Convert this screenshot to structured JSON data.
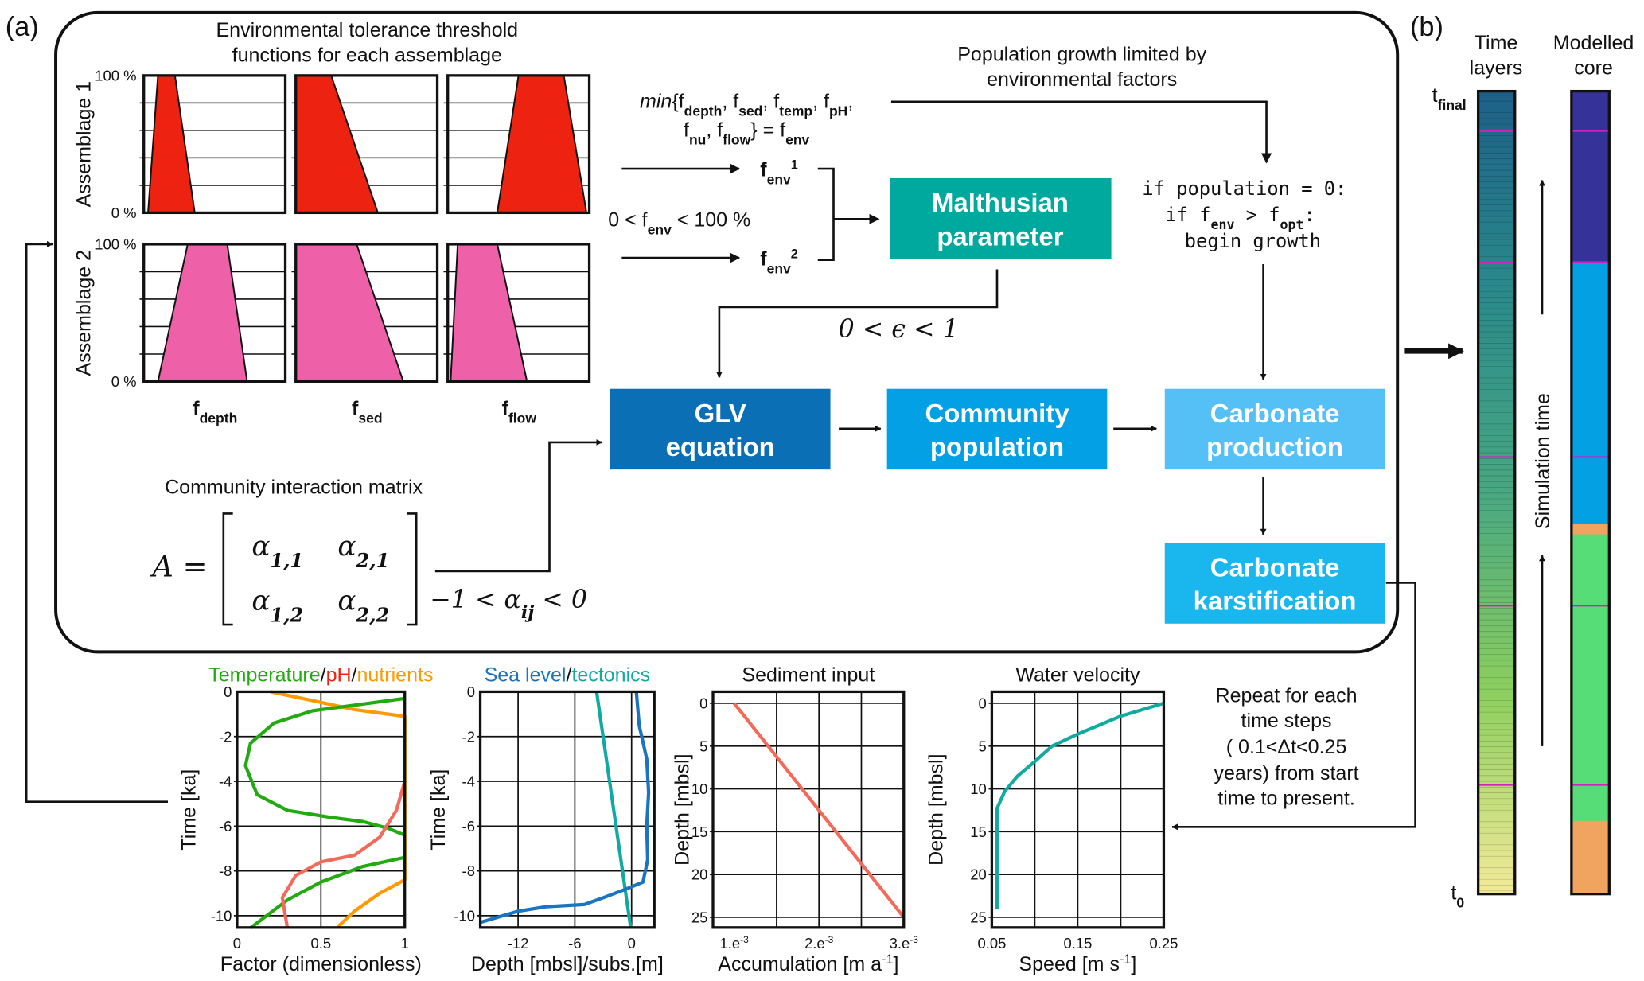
{
  "panel_a_label": "(a)",
  "panel_b_label": "(b)",
  "tolerance": {
    "title_lines": [
      "Environmental tolerance threshold",
      "functions for each assemblage"
    ],
    "y_top": "100 %",
    "y_bottom": "0 %",
    "rows": [
      {
        "label": "Assemblage 1",
        "color": "#ee2211",
        "shapes": [
          [
            0.03,
            0.1,
            0.22,
            0.36
          ],
          [
            0.0,
            0.0,
            0.25,
            0.58
          ],
          [
            0.35,
            0.5,
            0.82,
            0.98
          ]
        ]
      },
      {
        "label": "Assemblage 2",
        "color": "#ee60a8",
        "shapes": [
          [
            0.1,
            0.31,
            0.59,
            0.73
          ],
          [
            0.0,
            0.0,
            0.43,
            0.76
          ],
          [
            0.02,
            0.07,
            0.35,
            0.56
          ]
        ]
      }
    ],
    "columns": [
      [
        [
          "f",
          "b"
        ],
        [
          "depth",
          "sub"
        ]
      ],
      [
        [
          "f",
          "b"
        ],
        [
          "sed",
          "sub"
        ]
      ],
      [
        [
          "f",
          "b"
        ],
        [
          "flow",
          "sub"
        ]
      ]
    ]
  },
  "formula": {
    "line1": [
      [
        "min",
        "i"
      ],
      [
        "{f",
        ""
      ],
      [
        "depth",
        "sub"
      ],
      [
        ", f",
        ""
      ],
      [
        "sed",
        "sub"
      ],
      [
        ", f",
        ""
      ],
      [
        "temp",
        "sub"
      ],
      [
        ", f",
        ""
      ],
      [
        "pH",
        "sub"
      ],
      [
        ",",
        ""
      ]
    ],
    "line2": [
      [
        "f",
        ""
      ],
      [
        "nu",
        "sub"
      ],
      [
        ", f",
        ""
      ],
      [
        "flow",
        "sub"
      ],
      [
        "} = f",
        ""
      ],
      [
        "env",
        "sub"
      ]
    ],
    "fenv1": [
      [
        "f",
        "b"
      ],
      [
        "env",
        "subb"
      ],
      [
        "1",
        "supb"
      ]
    ],
    "fenv2": [
      [
        "f",
        "b"
      ],
      [
        "env",
        "subb"
      ],
      [
        "2",
        "supb"
      ]
    ],
    "range": [
      [
        "0 < f",
        ""
      ],
      [
        "env",
        "sub"
      ],
      [
        " < 100 %",
        ""
      ]
    ]
  },
  "population_note": [
    "Population growth limited by",
    "environmental factors"
  ],
  "code": {
    "line1": [
      [
        "if population = 0:",
        ""
      ]
    ],
    "line2": [
      [
        "if f",
        ""
      ],
      [
        "env",
        "sub"
      ],
      [
        " > f",
        ""
      ],
      [
        "opt",
        "sub"
      ],
      [
        ":",
        ""
      ]
    ],
    "line3": [
      [
        "begin growth",
        ""
      ]
    ]
  },
  "epsilon": "0 < ϵ < 1",
  "boxes": {
    "malthusian": {
      "lines": [
        "Malthusian",
        "parameter"
      ],
      "color": "#00a99d"
    },
    "glv": {
      "lines": [
        "GLV",
        "equation"
      ],
      "color": "#0a6fb5"
    },
    "community": {
      "lines": [
        "Community",
        "population"
      ],
      "color": "#03a0e6"
    },
    "production": {
      "lines": [
        "Carbonate",
        "production"
      ],
      "color": "#55c0f5"
    },
    "karstification": {
      "lines": [
        "Carbonate",
        "karstification"
      ],
      "color": "#1ab7ef"
    }
  },
  "matrix": {
    "title": "Community interaction matrix",
    "lhs": "A =",
    "a11": [
      [
        "α",
        ""
      ],
      [
        "1,1",
        "sub"
      ]
    ],
    "a21": [
      [
        "α",
        ""
      ],
      [
        "2,1",
        "sub"
      ]
    ],
    "a12": [
      [
        "α",
        ""
      ],
      [
        "1,2",
        "sub"
      ]
    ],
    "a22": [
      [
        "α",
        ""
      ],
      [
        "2,2",
        "sub"
      ]
    ],
    "constraint": [
      [
        "−1 < α",
        ""
      ],
      [
        "ij",
        "sub"
      ],
      [
        " < 0",
        ""
      ]
    ]
  },
  "repeat_note": [
    "Repeat for each",
    "time steps",
    "( 0.1<Δt<0.25",
    "years) from start",
    "time to present."
  ],
  "panel_b": {
    "time_layers_title": [
      "Time",
      "layers"
    ],
    "core_title": [
      "Modelled",
      "core"
    ],
    "t_final": [
      [
        "t",
        ""
      ],
      [
        "final",
        "sub"
      ]
    ],
    "t_zero": [
      [
        "t",
        ""
      ],
      [
        "0",
        "sub"
      ]
    ],
    "simulation_time": "Simulation time",
    "layer_gradient": [
      "#1d6088",
      "#2a8a8a",
      "#48a882",
      "#8ccf5e",
      "#f3ea98"
    ],
    "marker_color": "#d020c0",
    "core_units": [
      {
        "color": "#35339a",
        "fraction": 0.213
      },
      {
        "color": "#03a0e3",
        "fraction": 0.326
      },
      {
        "color": "#f0a460",
        "fraction": 0.013
      },
      {
        "color": "#57dd78",
        "fraction": 0.357
      },
      {
        "color": "#f0a460",
        "fraction": 0.091
      }
    ]
  },
  "chart_data": [
    {
      "type": "line",
      "title_parts": [
        {
          "text": "Temperature",
          "color": "#22aa11"
        },
        {
          "text": "/",
          "color": "#111111"
        },
        {
          "text": "pH",
          "color": "#ee2211"
        },
        {
          "text": "/",
          "color": "#111111"
        },
        {
          "text": "nutrients",
          "color": "#ff9900"
        }
      ],
      "xlabel": "Factor (dimensionless)",
      "ylabel": "Time [ka]",
      "xlim": [
        0,
        1
      ],
      "ylim": [
        0,
        -10.53
      ],
      "xticks": [
        {
          "v": 0,
          "label": [
            [
              "0",
              ""
            ]
          ]
        },
        {
          "v": 0.5,
          "label": [
            [
              "0.5",
              ""
            ]
          ]
        },
        {
          "v": 1,
          "label": [
            [
              "1",
              ""
            ]
          ]
        }
      ],
      "yticks": [
        {
          "v": 0,
          "label": "0"
        },
        {
          "v": -2,
          "label": "-2"
        },
        {
          "v": -4,
          "label": "-4"
        },
        {
          "v": -6,
          "label": "-6"
        },
        {
          "v": -8,
          "label": "-8"
        },
        {
          "v": -10,
          "label": "-10"
        }
      ],
      "gridx": [
        0.5
      ],
      "gridy": [
        -2,
        -4,
        -6,
        -8,
        -10
      ],
      "series": [
        {
          "color": "#ff9900",
          "points": [
            [
              0.2,
              0
            ],
            [
              0.45,
              -0.4
            ],
            [
              0.7,
              -0.8
            ],
            [
              1,
              -1.1
            ],
            [
              1,
              -8.4
            ],
            [
              0.85,
              -9
            ],
            [
              0.7,
              -9.8
            ],
            [
              0.6,
              -10.5
            ]
          ]
        },
        {
          "color": "#22aa11",
          "points": [
            [
              1,
              -0.3
            ],
            [
              0.7,
              -0.6
            ],
            [
              0.45,
              -0.85
            ],
            [
              0.22,
              -1.4
            ],
            [
              0.08,
              -2.3
            ],
            [
              0.05,
              -3.3
            ],
            [
              0.12,
              -4.6
            ],
            [
              0.3,
              -5.3
            ],
            [
              0.55,
              -5.6
            ],
            [
              0.75,
              -5.8
            ],
            [
              0.9,
              -6.1
            ],
            [
              1,
              -6.4
            ]
          ]
        },
        {
          "color": "#22aa11",
          "points": [
            [
              1,
              -7.4
            ],
            [
              0.75,
              -7.8
            ],
            [
              0.5,
              -8.5
            ],
            [
              0.3,
              -9.3
            ],
            [
              0.08,
              -10.55
            ]
          ]
        },
        {
          "color": "#f46a5a",
          "points": [
            [
              1,
              -4
            ],
            [
              0.95,
              -5.3
            ],
            [
              0.85,
              -6.5
            ],
            [
              0.7,
              -7.3
            ],
            [
              0.5,
              -7.6
            ],
            [
              0.35,
              -8.2
            ],
            [
              0.27,
              -9.2
            ],
            [
              0.3,
              -10.55
            ]
          ]
        }
      ]
    },
    {
      "type": "line",
      "title_parts": [
        {
          "text": "Sea level",
          "color": "#1a74c0"
        },
        {
          "text": "/",
          "color": "#111111"
        },
        {
          "text": "tectonics",
          "color": "#10aaa0"
        }
      ],
      "xlabel": "Depth [mbsl]/subs.[m]",
      "ylabel": "Time [ka]",
      "xlim": [
        -16,
        2.4
      ],
      "ylim": [
        0,
        -10.53
      ],
      "xticks": [
        {
          "v": -12,
          "label": [
            [
              "-12",
              ""
            ]
          ]
        },
        {
          "v": -6,
          "label": [
            [
              "-6",
              ""
            ]
          ]
        },
        {
          "v": 0,
          "label": [
            [
              "0",
              ""
            ]
          ]
        }
      ],
      "yticks": [
        {
          "v": 0,
          "label": "0"
        },
        {
          "v": -2,
          "label": "-2"
        },
        {
          "v": -4,
          "label": "-4"
        },
        {
          "v": -6,
          "label": "-6"
        },
        {
          "v": -8,
          "label": "-8"
        },
        {
          "v": -10,
          "label": "-10"
        }
      ],
      "gridx": [
        -12,
        -6,
        0
      ],
      "gridy": [
        -2,
        -4,
        -6,
        -8,
        -10
      ],
      "series": [
        {
          "color": "#10aaa0",
          "points": [
            [
              -3.7,
              0
            ],
            [
              -0.1,
              -10.5
            ]
          ]
        },
        {
          "color": "#1a74c0",
          "points": [
            [
              0.5,
              0
            ],
            [
              0.8,
              -1.5
            ],
            [
              1.6,
              -3
            ],
            [
              1.8,
              -4.5
            ],
            [
              1.6,
              -6
            ],
            [
              1.7,
              -7.5
            ],
            [
              1.2,
              -8.5
            ],
            [
              -0.5,
              -8.8
            ],
            [
              -3,
              -9.2
            ],
            [
              -5,
              -9.5
            ],
            [
              -9,
              -9.6
            ],
            [
              -12,
              -9.8
            ],
            [
              -16,
              -10.3
            ]
          ]
        }
      ]
    },
    {
      "type": "line",
      "title_parts": [
        {
          "text": "Sediment input",
          "color": "#111111"
        }
      ],
      "xlabel": [
        [
          "Accumulation [m a",
          ""
        ],
        [
          "-1",
          "sup"
        ],
        [
          "]",
          ""
        ]
      ],
      "ylabel": "Depth [mbsl]",
      "xlim": [
        0.00075,
        0.003
      ],
      "ylim": [
        -1.35,
        26.2
      ],
      "xticks": [
        {
          "v": 0.001,
          "label": [
            [
              "1.e",
              ""
            ],
            [
              "-3",
              "sup"
            ]
          ]
        },
        {
          "v": 0.002,
          "label": [
            [
              "2.e",
              ""
            ],
            [
              "-3",
              "sup"
            ]
          ]
        },
        {
          "v": 0.003,
          "label": [
            [
              "3.e",
              ""
            ],
            [
              "-3",
              "sup"
            ]
          ]
        }
      ],
      "yticks": [
        {
          "v": 0,
          "label": "0"
        },
        {
          "v": 5,
          "label": "5"
        },
        {
          "v": 10,
          "label": "10"
        },
        {
          "v": 15,
          "label": "15"
        },
        {
          "v": 20,
          "label": "20"
        },
        {
          "v": 25,
          "label": "25"
        }
      ],
      "gridx": [
        0.0015,
        0.002,
        0.0025
      ],
      "gridy": [
        0,
        5,
        10,
        15,
        20,
        25
      ],
      "series": [
        {
          "color": "#f46a5a",
          "points": [
            [
              0.001,
              0
            ],
            [
              0.003,
              25
            ]
          ]
        }
      ]
    },
    {
      "type": "line",
      "title_parts": [
        {
          "text": "Water velocity",
          "color": "#111111"
        }
      ],
      "xlabel": [
        [
          "Speed [m s",
          ""
        ],
        [
          "-1",
          "sup"
        ],
        [
          "]",
          ""
        ]
      ],
      "ylabel": "Depth [mbsl]",
      "xlim": [
        0.05,
        0.25
      ],
      "ylim": [
        -1.35,
        26.2
      ],
      "xticks": [
        {
          "v": 0.05,
          "label": [
            [
              "0.05",
              ""
            ]
          ]
        },
        {
          "v": 0.15,
          "label": [
            [
              "0.15",
              ""
            ]
          ]
        },
        {
          "v": 0.25,
          "label": [
            [
              "0.25",
              ""
            ]
          ]
        }
      ],
      "yticks": [
        {
          "v": 0,
          "label": "0"
        },
        {
          "v": 5,
          "label": "5"
        },
        {
          "v": 10,
          "label": "10"
        },
        {
          "v": 15,
          "label": "15"
        },
        {
          "v": 20,
          "label": "20"
        },
        {
          "v": 25,
          "label": "25"
        }
      ],
      "gridx": [
        0.1,
        0.15,
        0.2
      ],
      "gridy": [
        0,
        5,
        10,
        15,
        20,
        25
      ],
      "series": [
        {
          "color": "#10aaa0",
          "points": [
            [
              0.25,
              0
            ],
            [
              0.2,
              1.5
            ],
            [
              0.15,
              3.6
            ],
            [
              0.12,
              5
            ],
            [
              0.1,
              6.8
            ],
            [
              0.08,
              8.5
            ],
            [
              0.065,
              10.3
            ],
            [
              0.056,
              12.3
            ],
            [
              0.056,
              24
            ]
          ]
        }
      ]
    }
  ]
}
